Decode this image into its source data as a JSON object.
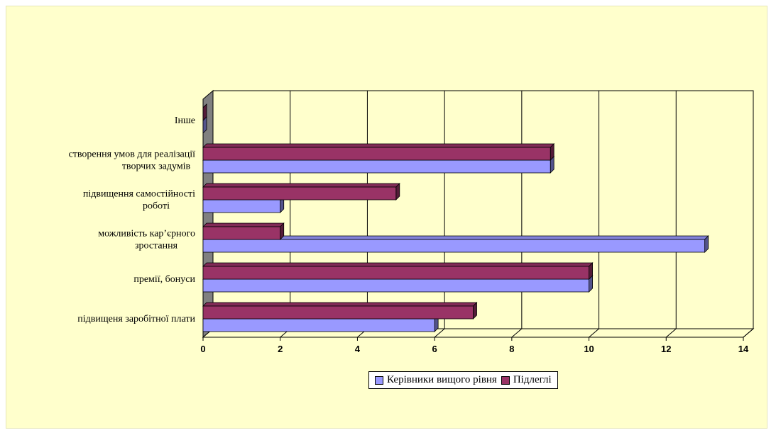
{
  "chart_data": {
    "type": "bar",
    "orientation": "horizontal",
    "categories": [
      "підвищеня заробітної плати",
      "премії, бонуси",
      "можливість кар'єрного зростання",
      "підвищення самостійності роботі",
      "створення умов для реалізації творчих задумів",
      "Інше"
    ],
    "category_lines": [
      [
        "підвищеня заробітної плати"
      ],
      [
        "премії, бонуси"
      ],
      [
        "можливість кар’єрного",
        "зростання"
      ],
      [
        "підвищення самостійності",
        "роботі"
      ],
      [
        "створення умов для реалізації",
        "творчих задумів"
      ],
      [
        "Інше"
      ]
    ],
    "series": [
      {
        "name": "Керівники вищого рівня",
        "values": [
          6,
          10,
          13,
          2,
          9,
          0
        ],
        "color": "#9999ff"
      },
      {
        "name": "Підлеглі",
        "values": [
          7,
          10,
          2,
          5,
          9,
          0
        ],
        "color": "#993366"
      }
    ],
    "xticks": [
      "0",
      "2",
      "4",
      "6",
      "8",
      "10",
      "12",
      "14"
    ],
    "xlim": [
      0,
      14
    ],
    "grid": "vertical",
    "legend_position": "bottom",
    "background": "#ffffcc",
    "wall_color": "#808080"
  }
}
